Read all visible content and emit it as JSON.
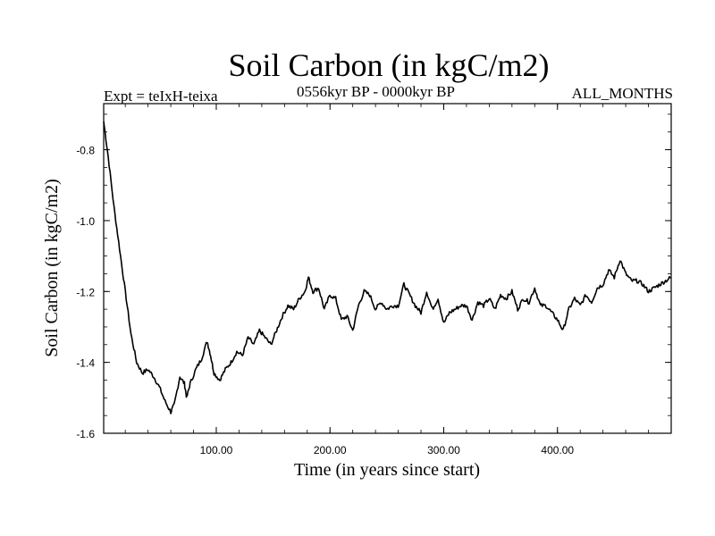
{
  "chart_data": {
    "type": "line",
    "title": "Soil Carbon (in kgC/m2)",
    "left_label": "Expt = teIxH-teixa",
    "center_label": "0556kyr BP - 0000kyr BP",
    "right_label": "ALL_MONTHS",
    "xlabel": "Time (in years since start)",
    "ylabel": "Soil Carbon (in kgC/m2)",
    "xlim": [
      1,
      500
    ],
    "ylim": [
      -1.6,
      -0.67
    ],
    "x_ticks": [
      {
        "value": 100,
        "label": "100.00"
      },
      {
        "value": 200,
        "label": "200.00"
      },
      {
        "value": 300,
        "label": "300.00"
      },
      {
        "value": 400,
        "label": "400.00"
      }
    ],
    "y_ticks": [
      {
        "value": -1.6,
        "label": "-1.6"
      },
      {
        "value": -1.4,
        "label": "-1.4"
      },
      {
        "value": -1.2,
        "label": "-1.2"
      },
      {
        "value": -1.0,
        "label": "-1.0"
      },
      {
        "value": -0.8,
        "label": "-0.8"
      }
    ],
    "grid": false,
    "series": [
      {
        "name": "Soil Carbon",
        "points": [
          [
            1,
            -0.72
          ],
          [
            5,
            -0.82
          ],
          [
            10,
            -0.96
          ],
          [
            15,
            -1.08
          ],
          [
            20,
            -1.2
          ],
          [
            25,
            -1.32
          ],
          [
            30,
            -1.4
          ],
          [
            35,
            -1.43
          ],
          [
            40,
            -1.42
          ],
          [
            45,
            -1.44
          ],
          [
            50,
            -1.47
          ],
          [
            55,
            -1.51
          ],
          [
            60,
            -1.54
          ],
          [
            63,
            -1.52
          ],
          [
            68,
            -1.44
          ],
          [
            72,
            -1.46
          ],
          [
            74,
            -1.5
          ],
          [
            77,
            -1.46
          ],
          [
            82,
            -1.42
          ],
          [
            87,
            -1.39
          ],
          [
            92,
            -1.34
          ],
          [
            95,
            -1.38
          ],
          [
            98,
            -1.43
          ],
          [
            103,
            -1.45
          ],
          [
            108,
            -1.42
          ],
          [
            113,
            -1.4
          ],
          [
            118,
            -1.37
          ],
          [
            123,
            -1.38
          ],
          [
            128,
            -1.33
          ],
          [
            133,
            -1.35
          ],
          [
            138,
            -1.31
          ],
          [
            143,
            -1.33
          ],
          [
            148,
            -1.35
          ],
          [
            153,
            -1.31
          ],
          [
            158,
            -1.27
          ],
          [
            163,
            -1.24
          ],
          [
            168,
            -1.25
          ],
          [
            173,
            -1.22
          ],
          [
            178,
            -1.2
          ],
          [
            181,
            -1.16
          ],
          [
            185,
            -1.2
          ],
          [
            190,
            -1.19
          ],
          [
            195,
            -1.25
          ],
          [
            200,
            -1.21
          ],
          [
            205,
            -1.22
          ],
          [
            210,
            -1.28
          ],
          [
            215,
            -1.27
          ],
          [
            220,
            -1.31
          ],
          [
            225,
            -1.24
          ],
          [
            230,
            -1.2
          ],
          [
            235,
            -1.21
          ],
          [
            240,
            -1.25
          ],
          [
            245,
            -1.23
          ],
          [
            250,
            -1.25
          ],
          [
            255,
            -1.24
          ],
          [
            260,
            -1.24
          ],
          [
            265,
            -1.18
          ],
          [
            270,
            -1.21
          ],
          [
            275,
            -1.24
          ],
          [
            280,
            -1.26
          ],
          [
            285,
            -1.2
          ],
          [
            290,
            -1.25
          ],
          [
            295,
            -1.22
          ],
          [
            300,
            -1.29
          ],
          [
            305,
            -1.26
          ],
          [
            310,
            -1.25
          ],
          [
            315,
            -1.24
          ],
          [
            320,
            -1.24
          ],
          [
            325,
            -1.28
          ],
          [
            330,
            -1.23
          ],
          [
            335,
            -1.24
          ],
          [
            340,
            -1.22
          ],
          [
            345,
            -1.25
          ],
          [
            350,
            -1.21
          ],
          [
            355,
            -1.22
          ],
          [
            360,
            -1.2
          ],
          [
            365,
            -1.25
          ],
          [
            370,
            -1.22
          ],
          [
            375,
            -1.23
          ],
          [
            380,
            -1.19
          ],
          [
            385,
            -1.24
          ],
          [
            390,
            -1.24
          ],
          [
            395,
            -1.26
          ],
          [
            400,
            -1.28
          ],
          [
            405,
            -1.31
          ],
          [
            410,
            -1.25
          ],
          [
            415,
            -1.22
          ],
          [
            420,
            -1.24
          ],
          [
            425,
            -1.21
          ],
          [
            430,
            -1.23
          ],
          [
            435,
            -1.19
          ],
          [
            440,
            -1.18
          ],
          [
            445,
            -1.14
          ],
          [
            450,
            -1.16
          ],
          [
            455,
            -1.11
          ],
          [
            460,
            -1.15
          ],
          [
            465,
            -1.17
          ],
          [
            470,
            -1.17
          ],
          [
            475,
            -1.18
          ],
          [
            480,
            -1.2
          ],
          [
            485,
            -1.19
          ],
          [
            490,
            -1.18
          ],
          [
            495,
            -1.17
          ],
          [
            500,
            -1.16
          ]
        ]
      }
    ]
  }
}
